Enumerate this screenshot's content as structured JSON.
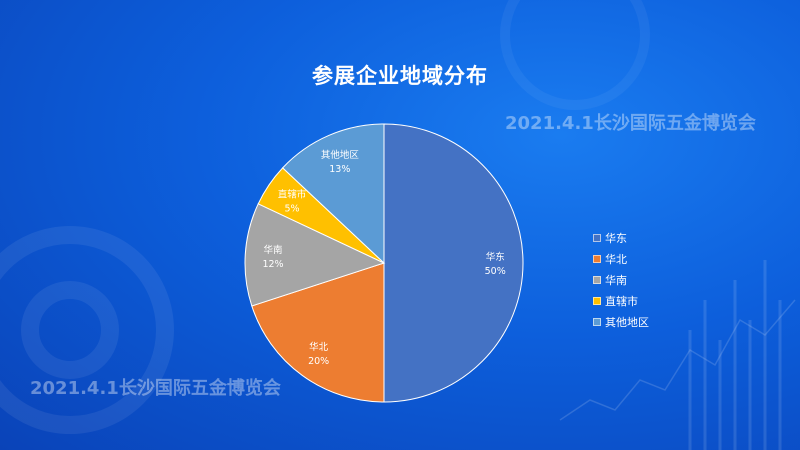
{
  "title": "参展企业地域分布",
  "watermark_top": "2021.4.1长沙国际五金博览会",
  "watermark_bottom": "2021.4.1长沙国际五金博览会",
  "chart_data": {
    "type": "pie",
    "title": "参展企业地域分布",
    "slices": [
      {
        "label": "华东",
        "value": 50,
        "display": "50%",
        "color": "#4472c4"
      },
      {
        "label": "华北",
        "value": 20,
        "display": "20%",
        "color": "#ed7d31"
      },
      {
        "label": "华南",
        "value": 12,
        "display": "12%",
        "color": "#a5a5a5"
      },
      {
        "label": "直辖市",
        "value": 5,
        "display": "5%",
        "color": "#ffc000"
      },
      {
        "label": "其他地区",
        "value": 13,
        "display": "13%",
        "color": "#5b9bd5"
      }
    ],
    "legend": {
      "position": "right"
    }
  }
}
